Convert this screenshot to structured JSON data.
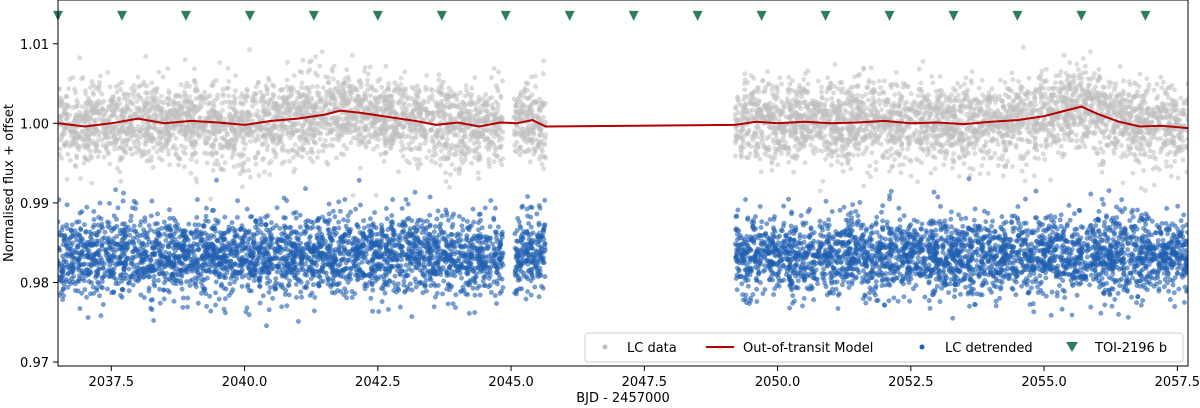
{
  "chart_data": {
    "type": "scatter",
    "title": "",
    "xlabel": "BJD - 2457000",
    "ylabel": "Normalised flux + offset",
    "xlim": [
      2036.5,
      2057.7
    ],
    "ylim": [
      0.9695,
      1.0155
    ],
    "xticks": [
      2037.5,
      2040.0,
      2042.5,
      2045.0,
      2047.5,
      2050.0,
      2052.5,
      2055.0,
      2057.5
    ],
    "xtick_labels": [
      "2037.5",
      "2040.0",
      "2042.5",
      "2045.0",
      "2047.5",
      "2050.0",
      "2052.5",
      "2055.0",
      "2057.5"
    ],
    "yticks": [
      0.97,
      0.98,
      0.99,
      1.0,
      1.01
    ],
    "ytick_labels": [
      "0.97",
      "0.98",
      "0.99",
      "1.00",
      "1.01"
    ],
    "legend_position": "bottom-right",
    "colors": {
      "lc_data": "#c0c0c0",
      "model": "#b30000",
      "lc_detrended": "#1f5fb0",
      "transit_marker": "#2e7d5b"
    },
    "data_segments": [
      [
        2036.5,
        2044.85
      ],
      [
        2045.05,
        2045.65
      ],
      [
        2049.2,
        2057.7
      ]
    ],
    "series": [
      {
        "name": "LC data",
        "kind": "scatter",
        "center": 1.0,
        "scatter": 0.0025
      },
      {
        "name": "Out-of-transit Model",
        "kind": "line",
        "x": [
          2036.5,
          2037.0,
          2037.5,
          2038.0,
          2038.5,
          2039.0,
          2039.5,
          2040.0,
          2040.5,
          2041.0,
          2041.5,
          2041.8,
          2042.2,
          2042.7,
          2043.2,
          2043.6,
          2044.0,
          2044.4,
          2044.8,
          2045.1,
          2045.4,
          2045.65,
          2049.2,
          2049.6,
          2050.0,
          2050.5,
          2051.0,
          2051.5,
          2052.0,
          2052.5,
          2053.0,
          2053.5,
          2054.0,
          2054.5,
          2055.0,
          2055.4,
          2055.7,
          2056.0,
          2056.4,
          2056.8,
          2057.2,
          2057.7
        ],
        "y": [
          1.0,
          0.9996,
          1.0,
          1.0006,
          1.0,
          1.0003,
          1.0001,
          0.9998,
          1.0003,
          1.0006,
          1.0011,
          1.0016,
          1.0013,
          1.0008,
          1.0003,
          0.9998,
          1.0001,
          0.9996,
          1.0001,
          1.0,
          1.0004,
          0.9996,
          0.9998,
          1.0002,
          1.0,
          1.0002,
          1.0,
          1.0001,
          1.0003,
          1.0,
          1.0001,
          0.9999,
          1.0002,
          1.0004,
          1.0009,
          1.0016,
          1.0021,
          1.0012,
          1.0002,
          0.9996,
          0.9997,
          0.9994
        ]
      },
      {
        "name": "LC detrended",
        "kind": "scatter",
        "center": 0.9834,
        "scatter": 0.0025
      },
      {
        "name": "TOI-2196 b",
        "kind": "transit_markers",
        "y": 1.0135,
        "x": [
          2036.5,
          2037.7,
          2038.9,
          2040.1,
          2041.3,
          2042.5,
          2043.7,
          2044.9,
          2046.1,
          2047.3,
          2048.5,
          2049.7,
          2050.9,
          2052.1,
          2053.3,
          2054.5,
          2055.7,
          2056.9
        ]
      }
    ],
    "legend": [
      "LC data",
      "Out-of-transit Model",
      "LC detrended",
      "TOI-2196 b"
    ]
  }
}
